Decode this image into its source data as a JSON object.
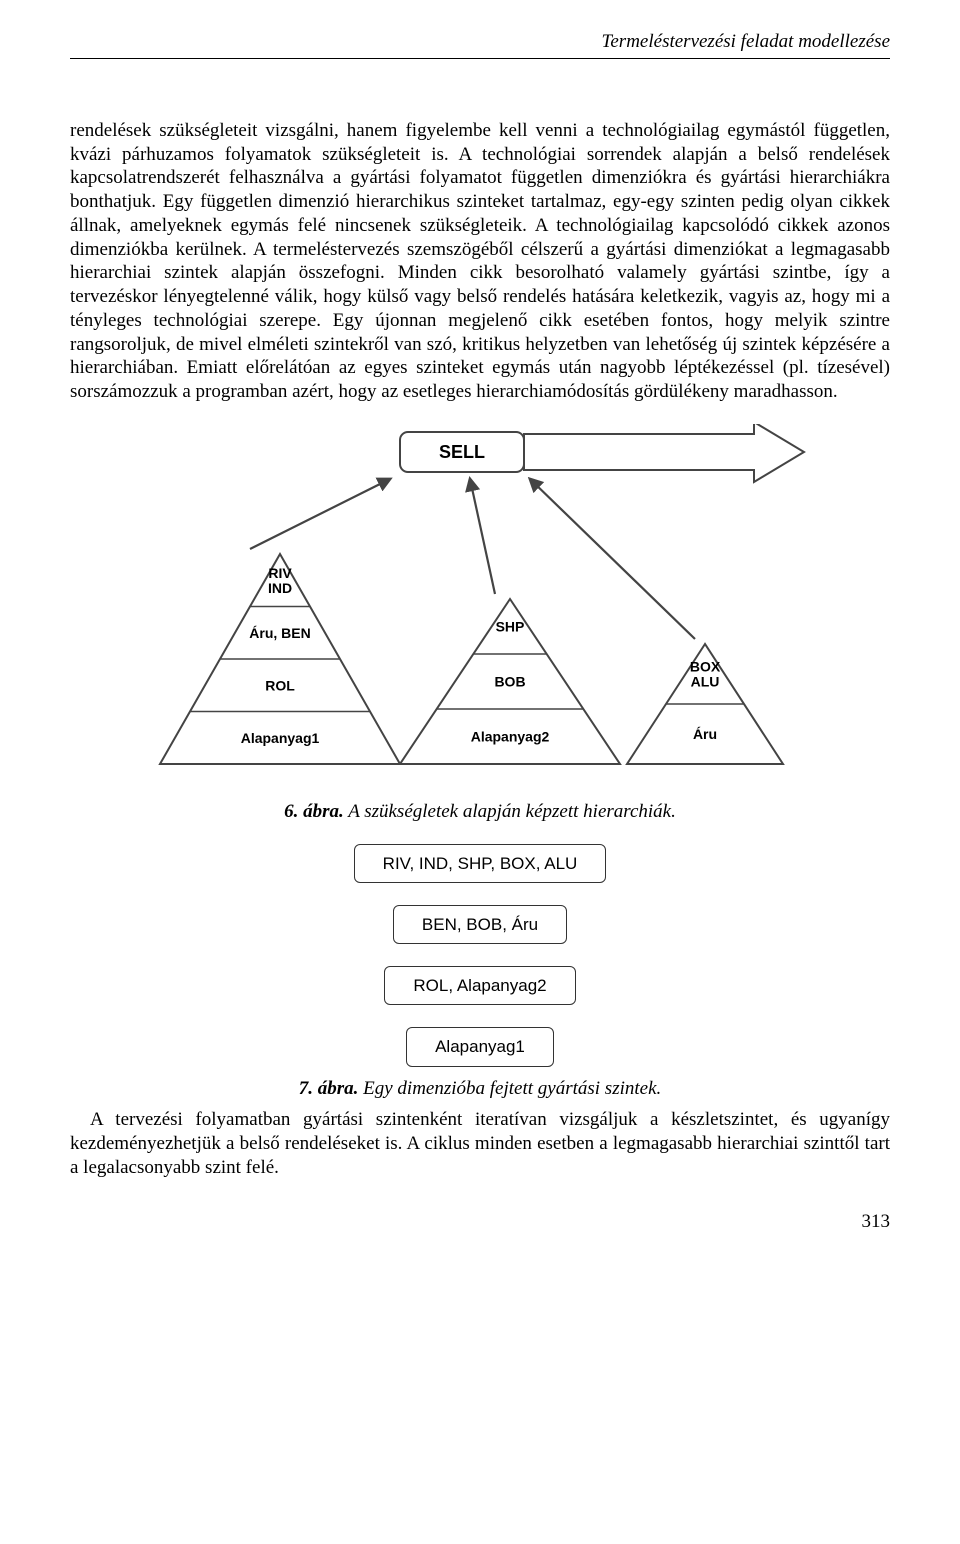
{
  "runningHead": "Termeléstervezési feladat modellezése",
  "bodyText": "rendelések szükségleteit vizsgálni, hanem figyelembe kell venni a technológiailag egymástól független, kvázi párhuzamos folyamatok szükségleteit is. A technológiai sorrendek alapján a belső rendelések kapcsolatrendszerét felhasználva a gyártási folyamatot független dimenziókra és gyártási hierarchiákra bonthatjuk. Egy független dimenzió hierarchikus szinteket tartalmaz, egy-egy szinten pedig olyan cikkek állnak, amelyeknek egymás felé nincsenek szükségleteik. A technológiailag kapcsolódó cikkek azonos dimenziókba kerülnek. A termeléstervezés szemszögéből célszerű a gyártási dimenziókat a legmagasabb hierarchiai szintek alapján összefogni. Minden cikk besorolható valamely gyártási szintbe, így a tervezéskor lényegtelenné válik, hogy külső vagy belső rendelés hatására keletkezik, vagyis az, hogy mi a tényleges technológiai szerepe. Egy újonnan megjelenő cikk esetében fontos, hogy melyik szintre rangsoroljuk, de mivel elméleti szintekről van szó, kritikus helyzetben van lehetőség új szintek képzésére a hierarchiában. Emiatt előrelátóan az egyes szinteket egymás után nagyobb léptékezéssel (pl. tízesével) sorszámozzuk a programban azért, hogy az esetleges hierarchiamódosítás gördülékeny maradhasson.",
  "figure6": {
    "sellLabel": "SELL",
    "pyramids": [
      {
        "levels": [
          "RIV\nIND",
          "Áru, BEN",
          "ROL",
          "Alapanyag1"
        ]
      },
      {
        "levels": [
          "SHP",
          "BOB",
          "Alapanyag2"
        ]
      },
      {
        "levels": [
          "BOX\nALU",
          "Áru"
        ]
      }
    ],
    "captionLead": "6. ábra.",
    "captionRest": " A szükségletek alapján képzett hierarchiák.",
    "style": {
      "stroke": "#444444",
      "strokeWidth": 2,
      "fill": "none",
      "textColor": "#000000",
      "fontFamily": "Arial, Helvetica, sans-serif",
      "labelFontSize": 14,
      "sellFontSize": 18,
      "arrowFill": "#444444"
    }
  },
  "figure7": {
    "levels": [
      "RIV, IND, SHP, BOX, ALU",
      "BEN, BOB, Áru",
      "ROL, Alapanyag2",
      "Alapanyag1"
    ],
    "captionLead": "7. ábra.",
    "captionRest": " Egy dimenzióba fejtett gyártási szintek."
  },
  "bodyText2": "A tervezési folyamatban gyártási szintenként iteratívan vizsgáljuk a készletszintet, és ugyanígy kezdeményezhetjük a belső rendeléseket is. A ciklus minden esetben a legmagasabb hierarchiai szinttől tart a legalacsonyabb szint felé.",
  "pageNumber": "313"
}
